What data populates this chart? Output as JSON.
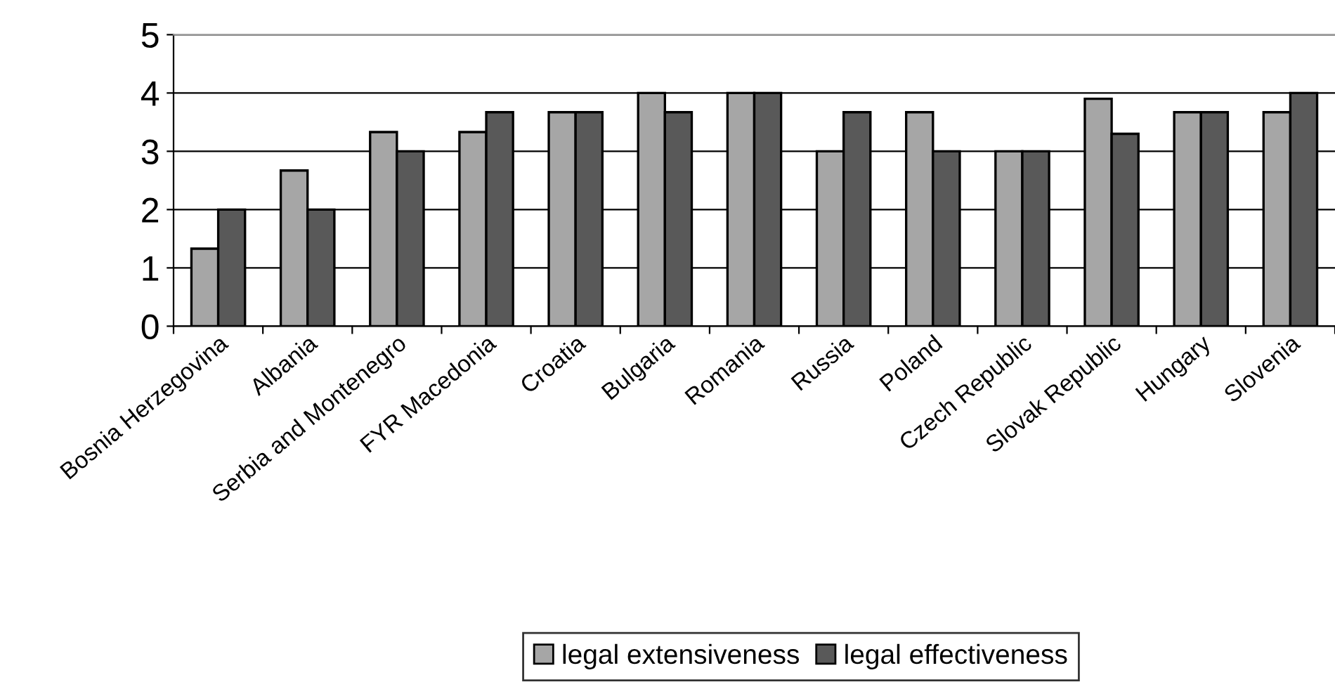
{
  "chart_data": {
    "type": "bar",
    "categories": [
      "Bosnia Herzegovina",
      "Albania",
      "Serbia and Montenegro",
      "FYR Macedonia",
      "Croatia",
      "Bulgaria",
      "Romania",
      "Russia",
      "Poland",
      "Czech Republic",
      "Slovak Republic",
      "Hungary",
      "Slovenia"
    ],
    "series": [
      {
        "name": "legal extensiveness",
        "color": "#a6a6a6",
        "values": [
          1.33,
          2.67,
          3.33,
          3.33,
          3.67,
          4,
          4,
          3,
          3.67,
          3,
          3.9,
          3.67,
          3.67
        ]
      },
      {
        "name": "legal effectiveness",
        "color": "#595959",
        "values": [
          2,
          2,
          3,
          3.67,
          3.67,
          3.67,
          4,
          3.67,
          3,
          3,
          3.3,
          3.67,
          4
        ]
      }
    ],
    "ylim": [
      0,
      5
    ],
    "yticks": [
      0,
      1,
      2,
      3,
      4,
      5
    ],
    "grid": "y",
    "legend": "bottom"
  }
}
